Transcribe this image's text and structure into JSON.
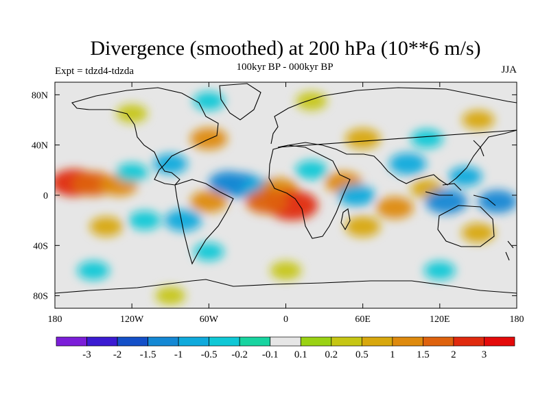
{
  "chart_data": {
    "type": "heatmap",
    "title": "Divergence (smoothed) at 200 hPa (10**6 m/s)",
    "subtitle_left": "Expt = tdzd4-tdzda",
    "subtitle_center": "100kyr BP - 000kyr BP",
    "subtitle_right": "JJA",
    "x_axis": {
      "range": [
        -180,
        180
      ],
      "ticks": [
        -180,
        -120,
        -60,
        0,
        60,
        120,
        180
      ],
      "tick_labels": [
        "180",
        "120W",
        "60W",
        "0",
        "60E",
        "120E",
        "180"
      ]
    },
    "y_axis": {
      "range": [
        -90,
        90
      ],
      "ticks": [
        80,
        40,
        0,
        -40,
        -80
      ],
      "tick_labels": [
        "80N",
        "40N",
        "0",
        "40S",
        "80S"
      ]
    },
    "colorbar": {
      "labels": [
        "-3",
        "-2",
        "-1.5",
        "-1",
        "-0.5",
        "-0.2",
        "-0.1",
        "0.1",
        "0.2",
        "0.5",
        "1",
        "1.5",
        "2",
        "3"
      ],
      "levels": [
        -3,
        -2,
        -1.5,
        -1,
        -0.5,
        -0.2,
        -0.1,
        0.1,
        0.2,
        0.5,
        1,
        1.5,
        2,
        3
      ],
      "colors": [
        "#7b1ed8",
        "#3b1bd2",
        "#1450c8",
        "#1488d4",
        "#10aadc",
        "#10c8d6",
        "#18d4a0",
        "#e6e6e6",
        "#9ad214",
        "#c6c614",
        "#d8a80e",
        "#de8a0e",
        "#de620e",
        "#e02a0e",
        "#e40a0a"
      ]
    },
    "regions": [
      {
        "lon": -165,
        "lat": 10,
        "value": 2.0
      },
      {
        "lon": -150,
        "lat": 9,
        "value": 1.5
      },
      {
        "lon": -130,
        "lat": 8,
        "value": 1.0
      },
      {
        "lon": -120,
        "lat": 18,
        "value": -0.5
      },
      {
        "lon": -90,
        "lat": 25,
        "value": -0.7
      },
      {
        "lon": -60,
        "lat": 45,
        "value": 1.0
      },
      {
        "lon": -45,
        "lat": 10,
        "value": -1.2
      },
      {
        "lon": -35,
        "lat": 8,
        "value": -1.5
      },
      {
        "lon": -20,
        "lat": 5,
        "value": -1.0
      },
      {
        "lon": -5,
        "lat": 5,
        "value": 1.0
      },
      {
        "lon": 5,
        "lat": -8,
        "value": 2.5
      },
      {
        "lon": -15,
        "lat": -5,
        "value": 1.5
      },
      {
        "lon": -60,
        "lat": -5,
        "value": 1.0
      },
      {
        "lon": -80,
        "lat": -20,
        "value": -1.0
      },
      {
        "lon": -110,
        "lat": -20,
        "value": -0.5
      },
      {
        "lon": -140,
        "lat": -25,
        "value": 0.6
      },
      {
        "lon": -60,
        "lat": -45,
        "value": -0.3
      },
      {
        "lon": 20,
        "lat": 20,
        "value": -0.5
      },
      {
        "lon": 45,
        "lat": 10,
        "value": 1.0
      },
      {
        "lon": 55,
        "lat": 0,
        "value": -1.0
      },
      {
        "lon": 60,
        "lat": -25,
        "value": 0.8
      },
      {
        "lon": 85,
        "lat": -10,
        "value": 1.0
      },
      {
        "lon": 95,
        "lat": 25,
        "value": -1.0
      },
      {
        "lon": 110,
        "lat": 5,
        "value": 0.5
      },
      {
        "lon": 125,
        "lat": -5,
        "value": -1.5
      },
      {
        "lon": 140,
        "lat": 15,
        "value": -0.6
      },
      {
        "lon": 165,
        "lat": -5,
        "value": -1.2
      },
      {
        "lon": 150,
        "lat": -30,
        "value": 0.6
      },
      {
        "lon": 60,
        "lat": 45,
        "value": 0.8
      },
      {
        "lon": 110,
        "lat": 45,
        "value": -0.5
      },
      {
        "lon": 150,
        "lat": 60,
        "value": 0.5
      },
      {
        "lon": -120,
        "lat": 65,
        "value": 0.4
      },
      {
        "lon": -60,
        "lat": 75,
        "value": -0.4
      },
      {
        "lon": 20,
        "lat": 75,
        "value": 0.4
      },
      {
        "lon": -150,
        "lat": -60,
        "value": -0.5
      },
      {
        "lon": 0,
        "lat": -60,
        "value": 0.4
      },
      {
        "lon": 120,
        "lat": -60,
        "value": -0.4
      },
      {
        "lon": -90,
        "lat": -80,
        "value": 0.3
      }
    ]
  }
}
